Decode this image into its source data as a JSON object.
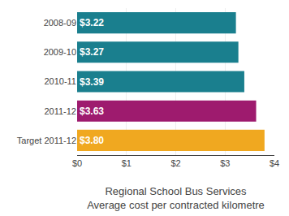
{
  "chart_data": {
    "type": "bar",
    "orientation": "horizontal",
    "categories": [
      "2008-09",
      "2009-10",
      "2010-11",
      "2011-12",
      "Target 2011-12"
    ],
    "values": [
      3.22,
      3.27,
      3.39,
      3.63,
      3.8
    ],
    "value_labels": [
      "$3.22",
      "$3.27",
      "$3.39",
      "$3.63",
      "$3.80"
    ],
    "data_labels": true,
    "colors": [
      "#1a7f8e",
      "#1a7f8e",
      "#1a7f8e",
      "#9e1b6e",
      "#f0a820"
    ],
    "xlabel": "Regional School Bus Services\nAverage cost per contracted kilometre",
    "xlim": [
      0,
      4
    ],
    "xticks": [
      {
        "value": 0,
        "label": "$0"
      },
      {
        "value": 1,
        "label": "$1"
      },
      {
        "value": 2,
        "label": "$2"
      },
      {
        "value": 3,
        "label": "$3"
      },
      {
        "value": 4,
        "label": "$4"
      }
    ],
    "grid": true
  }
}
